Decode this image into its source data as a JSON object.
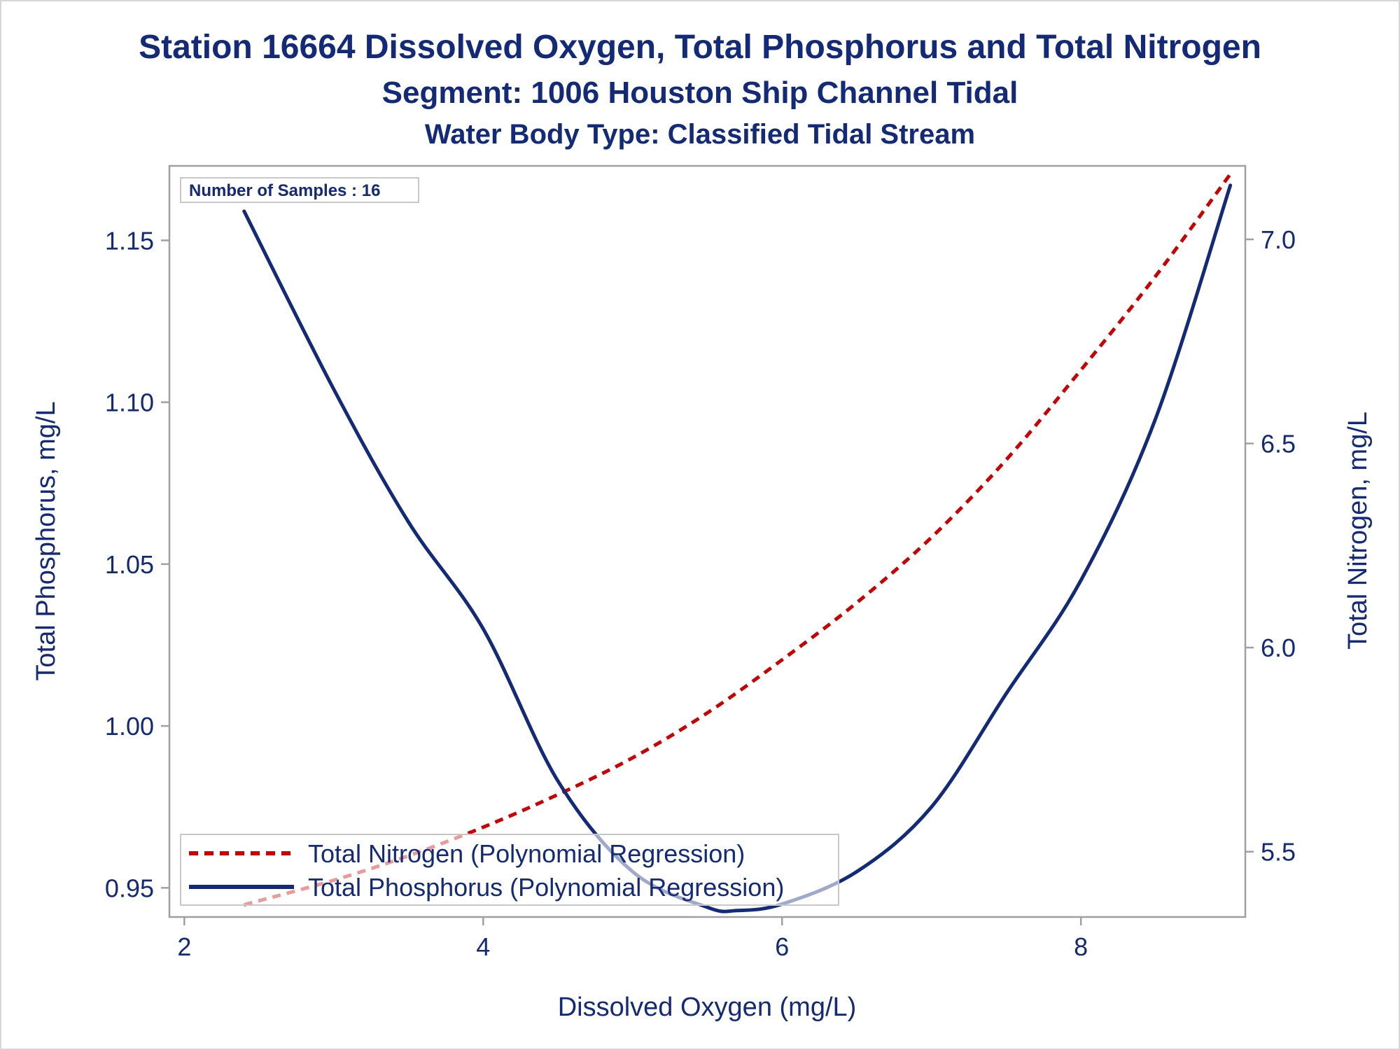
{
  "titles": {
    "line1": "Station 16664  Dissolved Oxygen, Total Phosphorus and Total Nitrogen",
    "line2": "Segment: 1006  Houston Ship Channel Tidal",
    "line3": "Water Body Type: Classified Tidal Stream"
  },
  "inset_label": "Number of Samples : 16",
  "colors": {
    "text": "#132a7a",
    "phosphorus": "#132a7a",
    "nitrogen": "#cc0000",
    "frame": "#a0a0a0"
  },
  "chart_data": {
    "type": "line",
    "title": "Station 16664  Dissolved Oxygen, Total Phosphorus and Total Nitrogen",
    "subtitles": [
      "Segment: 1006  Houston Ship Channel Tidal",
      "Water Body Type: Classified Tidal Stream"
    ],
    "xlabel": "Dissolved Oxygen (mg/L)",
    "ylabel_left": "Total Phosphorus, mg/L",
    "ylabel_right": "Total Nitrogen, mg/L",
    "xlim": [
      1.9,
      9.1
    ],
    "ylim_left": [
      0.941,
      1.173
    ],
    "ylim_right": [
      5.34,
      7.18
    ],
    "x_ticks": [
      "2",
      "4",
      "6",
      "8"
    ],
    "y_left_ticks": [
      "0.95",
      "1.00",
      "1.05",
      "1.10",
      "1.15"
    ],
    "y_right_ticks": [
      "5.5",
      "6.0",
      "6.5",
      "7.0"
    ],
    "grid": false,
    "legend_position": "bottom-left",
    "series": [
      {
        "name": "Total Nitrogen (Polynomial Regression)",
        "axis": "right",
        "style": "dashed",
        "color": "#cc0000",
        "x": [
          2.4,
          3.0,
          3.5,
          4.0,
          4.5,
          5.0,
          5.5,
          6.0,
          6.5,
          7.0,
          7.5,
          8.0,
          8.5,
          9.0
        ],
        "y": [
          5.37,
          5.43,
          5.49,
          5.56,
          5.64,
          5.73,
          5.84,
          5.97,
          6.11,
          6.27,
          6.46,
          6.68,
          6.91,
          7.16
        ]
      },
      {
        "name": "Total Phosphorus (Polynomial Regression)",
        "axis": "left",
        "style": "solid",
        "color": "#132a7a",
        "x": [
          2.4,
          3.0,
          3.5,
          4.0,
          4.5,
          5.0,
          5.5,
          5.7,
          6.0,
          6.5,
          7.0,
          7.5,
          8.0,
          8.5,
          9.0
        ],
        "y": [
          1.159,
          1.104,
          1.063,
          1.03,
          0.983,
          0.955,
          0.944,
          0.943,
          0.945,
          0.955,
          0.975,
          1.01,
          1.045,
          1.095,
          1.167
        ]
      }
    ]
  }
}
